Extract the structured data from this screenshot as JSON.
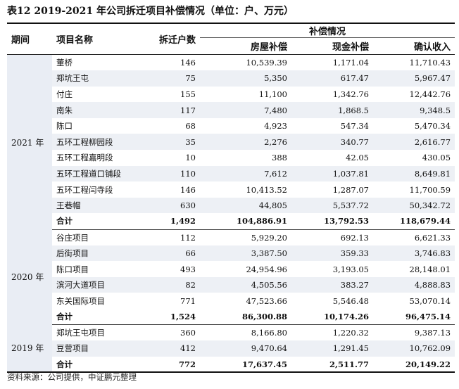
{
  "title": "表12 2019-2021 年公司拆迁项目补偿情况（单位：户、万元）",
  "headers": {
    "period": "期间",
    "project": "项目名称",
    "households": "拆迁户数",
    "compensation": "补偿情况",
    "house": "房屋补偿",
    "cash": "现金补偿",
    "revenue": "确认收入"
  },
  "groups": [
    {
      "period": "2021 年",
      "rows": [
        {
          "name": "董桥",
          "hh": "146",
          "house": "10,539.39",
          "cash": "1,171.04",
          "rev": "11,710.43"
        },
        {
          "name": "郑坑王屯",
          "hh": "75",
          "house": "5,350",
          "cash": "617.47",
          "rev": "5,967.47"
        },
        {
          "name": "付庄",
          "hh": "155",
          "house": "11,100",
          "cash": "1,342.76",
          "rev": "12,442.76"
        },
        {
          "name": "南朱",
          "hh": "117",
          "house": "7,480",
          "cash": "1,868.5",
          "rev": "9,348.5"
        },
        {
          "name": "陈口",
          "hh": "68",
          "house": "4,923",
          "cash": "547.34",
          "rev": "5,470.34"
        },
        {
          "name": "五环工程柳园段",
          "hh": "35",
          "house": "2,276",
          "cash": "340.77",
          "rev": "2,616.77"
        },
        {
          "name": "五环工程嘉明段",
          "hh": "10",
          "house": "388",
          "cash": "42.05",
          "rev": "430.05"
        },
        {
          "name": "五环工程道口铺段",
          "hh": "110",
          "house": "7,612",
          "cash": "1,037.81",
          "rev": "8,649.81"
        },
        {
          "name": "五环工程闫寺段",
          "hh": "146",
          "house": "10,413.52",
          "cash": "1,287.07",
          "rev": "11,700.59"
        },
        {
          "name": "王巷帽",
          "hh": "630",
          "house": "44,805",
          "cash": "5,537.72",
          "rev": "50,342.72"
        }
      ],
      "total": {
        "name": "合计",
        "hh": "1,492",
        "house": "104,886.91",
        "cash": "13,792.53",
        "rev": "118,679.44"
      }
    },
    {
      "period": "2020 年",
      "rows": [
        {
          "name": "谷庄项目",
          "hh": "112",
          "house": "5,929.20",
          "cash": "692.13",
          "rev": "6,621.33"
        },
        {
          "name": "后街项目",
          "hh": "66",
          "house": "3,387.50",
          "cash": "359.33",
          "rev": "3,746.83"
        },
        {
          "name": "陈口项目",
          "hh": "493",
          "house": "24,954.96",
          "cash": "3,193.05",
          "rev": "28,148.01"
        },
        {
          "name": "滨河大道项目",
          "hh": "82",
          "house": "4,505.56",
          "cash": "383.27",
          "rev": "4,888.83"
        },
        {
          "name": "东关国际项目",
          "hh": "771",
          "house": "47,523.66",
          "cash": "5,546.48",
          "rev": "53,070.14"
        }
      ],
      "total": {
        "name": "合计",
        "hh": "1,524",
        "house": "86,300.88",
        "cash": "10,174.26",
        "rev": "96,475.14"
      }
    },
    {
      "period": "2019 年",
      "rows": [
        {
          "name": "郑坑王屯项目",
          "hh": "360",
          "house": "8,166.80",
          "cash": "1,220.32",
          "rev": "9,387.13"
        },
        {
          "name": "豆营项目",
          "hh": "412",
          "house": "9,470.64",
          "cash": "1,291.45",
          "rev": "10,762.09"
        }
      ],
      "total": {
        "name": "合计",
        "hh": "772",
        "house": "17,637.45",
        "cash": "2,511.77",
        "rev": "20,149.22"
      }
    }
  ],
  "source": "资料来源：公司提供，中证鹏元整理"
}
